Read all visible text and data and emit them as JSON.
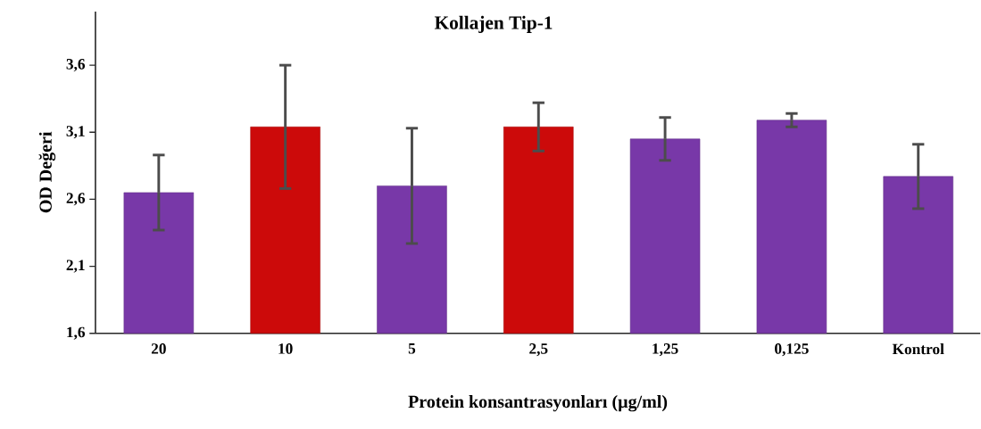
{
  "chart_data": {
    "type": "bar",
    "title": "Kollajen Tip-1",
    "xlabel": "Protein konsantrasyonları (µg/ml)",
    "ylabel": "OD Değeri",
    "categories": [
      "20",
      "10",
      "5",
      "2,5",
      "1,25",
      "0,125",
      "Kontrol"
    ],
    "values": [
      2.65,
      3.14,
      2.7,
      3.14,
      3.05,
      3.19,
      2.77
    ],
    "errors": [
      0.28,
      0.46,
      0.43,
      0.18,
      0.16,
      0.05,
      0.24
    ],
    "colors": [
      "#7838a8",
      "#cc0a0a",
      "#7838a8",
      "#cc0a0a",
      "#7838a8",
      "#7838a8",
      "#7838a8"
    ],
    "ylim": [
      1.6,
      4.0
    ],
    "yticks": [
      {
        "value": 1.6,
        "label": "1,6"
      },
      {
        "value": 2.1,
        "label": "2,1"
      },
      {
        "value": 2.6,
        "label": "2,6"
      },
      {
        "value": 3.1,
        "label": "3,1"
      },
      {
        "value": 3.6,
        "label": "3,6"
      }
    ],
    "grid": false
  }
}
